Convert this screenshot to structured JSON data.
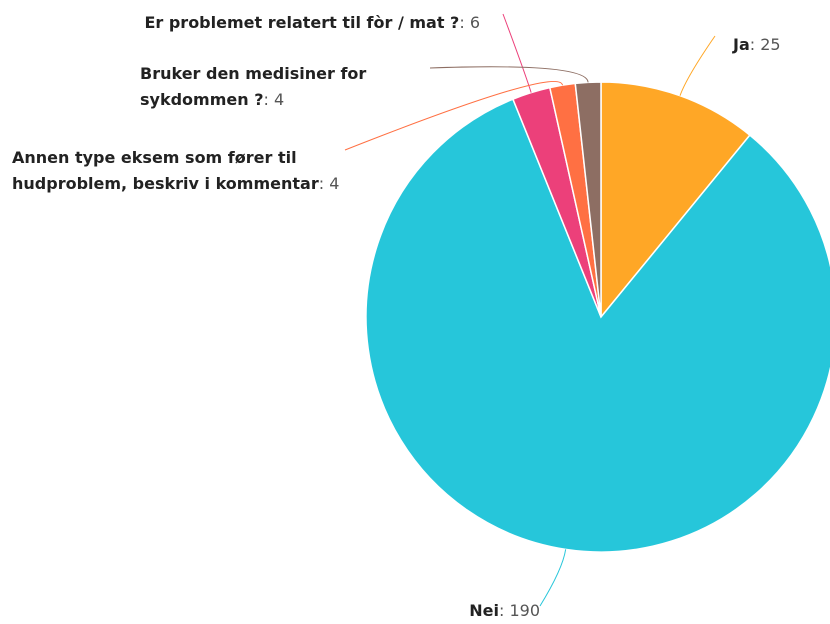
{
  "chart_data": {
    "type": "pie",
    "separator": ": ",
    "categories": [
      "Ja",
      "Nei",
      "Er problemet relatert til fòr / mat ?",
      "Annen type eksem som fører til hudproblem, beskriv i kommentar",
      "Bruker den medisiner for sykdommen ?"
    ],
    "values": [
      25,
      190,
      6,
      4,
      4
    ],
    "colors": [
      "#ffa726",
      "#26c6da",
      "#ec407a",
      "#ff7043",
      "#8d6e63"
    ]
  }
}
